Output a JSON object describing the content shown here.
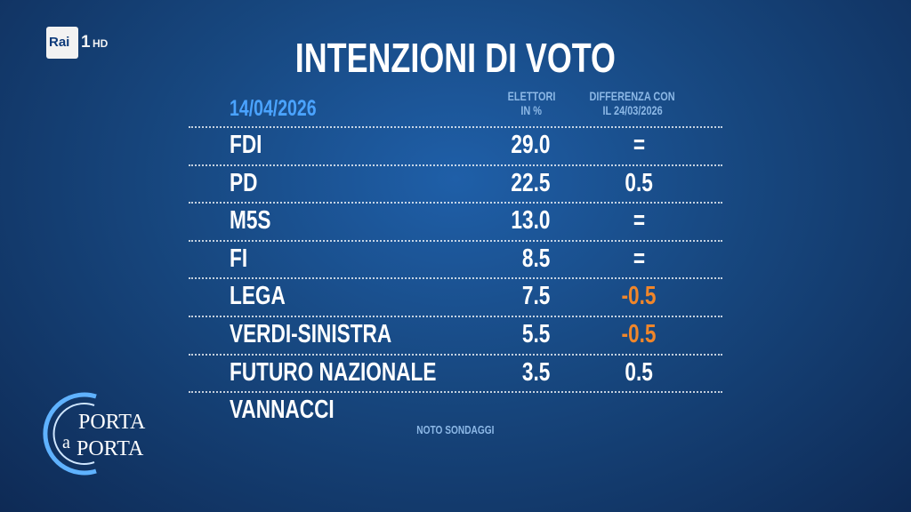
{
  "logo": {
    "brand": "Rai",
    "channel": "1",
    "quality": "HD"
  },
  "title": "INTENZIONI DI VOTO",
  "date": "14/04/2026",
  "columns": {
    "value": [
      "ELETTORI",
      "IN %"
    ],
    "difference": [
      "DIFFERENZA CON",
      "IL 24/03/2026"
    ]
  },
  "table": {
    "rows": [
      [
        "FDI",
        "29.0",
        "="
      ],
      [
        "PD",
        "22.5",
        "0.5"
      ],
      [
        "M5S",
        "13.0",
        "="
      ],
      [
        "FI",
        "8.5",
        "="
      ],
      [
        "LEGA",
        "7.5",
        "-0.5"
      ],
      [
        "VERDI-SINISTRA",
        "5.5",
        "-0.5"
      ],
      [
        "FUTURO NAZIONALE VANNACCI",
        "3.5",
        "0.5"
      ]
    ]
  },
  "source": "NOTO SONDAGGI",
  "show": [
    "PORTA",
    "a",
    "PORTA"
  ]
}
